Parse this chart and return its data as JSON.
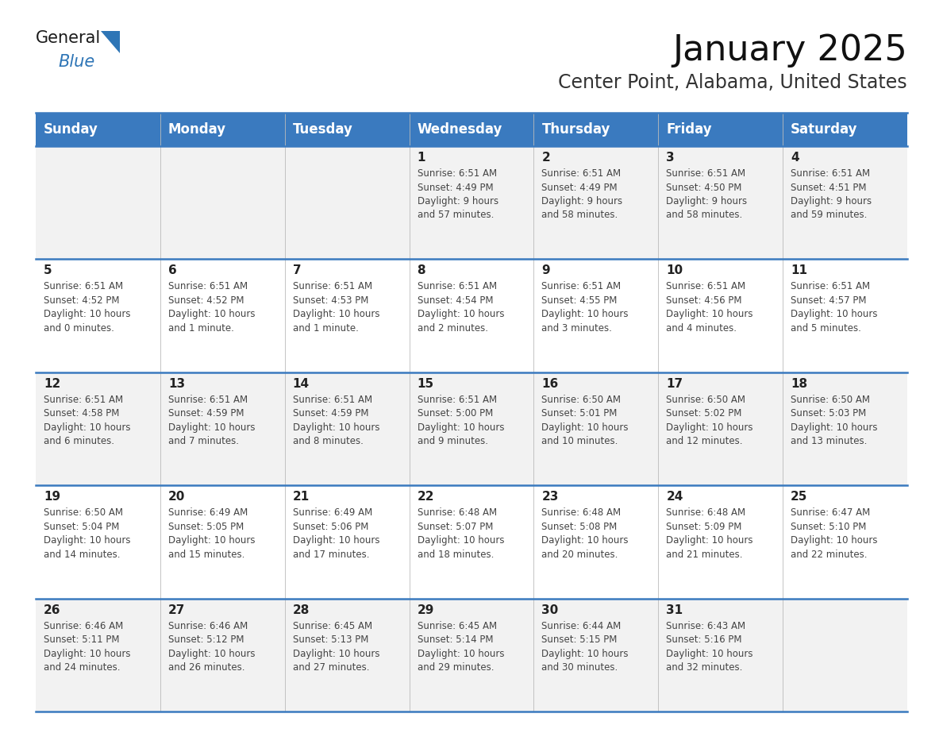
{
  "title": "January 2025",
  "subtitle": "Center Point, Alabama, United States",
  "days_of_week": [
    "Sunday",
    "Monday",
    "Tuesday",
    "Wednesday",
    "Thursday",
    "Friday",
    "Saturday"
  ],
  "header_bg": "#3a7abf",
  "header_text": "#FFFFFF",
  "row_bg_light": "#F2F2F2",
  "row_bg_white": "#FFFFFF",
  "border_color": "#3a7abf",
  "day_number_color": "#222222",
  "cell_text_color": "#444444",
  "weeks": [
    [
      {
        "day": "",
        "info": ""
      },
      {
        "day": "",
        "info": ""
      },
      {
        "day": "",
        "info": ""
      },
      {
        "day": "1",
        "info": "Sunrise: 6:51 AM\nSunset: 4:49 PM\nDaylight: 9 hours\nand 57 minutes."
      },
      {
        "day": "2",
        "info": "Sunrise: 6:51 AM\nSunset: 4:49 PM\nDaylight: 9 hours\nand 58 minutes."
      },
      {
        "day": "3",
        "info": "Sunrise: 6:51 AM\nSunset: 4:50 PM\nDaylight: 9 hours\nand 58 minutes."
      },
      {
        "day": "4",
        "info": "Sunrise: 6:51 AM\nSunset: 4:51 PM\nDaylight: 9 hours\nand 59 minutes."
      }
    ],
    [
      {
        "day": "5",
        "info": "Sunrise: 6:51 AM\nSunset: 4:52 PM\nDaylight: 10 hours\nand 0 minutes."
      },
      {
        "day": "6",
        "info": "Sunrise: 6:51 AM\nSunset: 4:52 PM\nDaylight: 10 hours\nand 1 minute."
      },
      {
        "day": "7",
        "info": "Sunrise: 6:51 AM\nSunset: 4:53 PM\nDaylight: 10 hours\nand 1 minute."
      },
      {
        "day": "8",
        "info": "Sunrise: 6:51 AM\nSunset: 4:54 PM\nDaylight: 10 hours\nand 2 minutes."
      },
      {
        "day": "9",
        "info": "Sunrise: 6:51 AM\nSunset: 4:55 PM\nDaylight: 10 hours\nand 3 minutes."
      },
      {
        "day": "10",
        "info": "Sunrise: 6:51 AM\nSunset: 4:56 PM\nDaylight: 10 hours\nand 4 minutes."
      },
      {
        "day": "11",
        "info": "Sunrise: 6:51 AM\nSunset: 4:57 PM\nDaylight: 10 hours\nand 5 minutes."
      }
    ],
    [
      {
        "day": "12",
        "info": "Sunrise: 6:51 AM\nSunset: 4:58 PM\nDaylight: 10 hours\nand 6 minutes."
      },
      {
        "day": "13",
        "info": "Sunrise: 6:51 AM\nSunset: 4:59 PM\nDaylight: 10 hours\nand 7 minutes."
      },
      {
        "day": "14",
        "info": "Sunrise: 6:51 AM\nSunset: 4:59 PM\nDaylight: 10 hours\nand 8 minutes."
      },
      {
        "day": "15",
        "info": "Sunrise: 6:51 AM\nSunset: 5:00 PM\nDaylight: 10 hours\nand 9 minutes."
      },
      {
        "day": "16",
        "info": "Sunrise: 6:50 AM\nSunset: 5:01 PM\nDaylight: 10 hours\nand 10 minutes."
      },
      {
        "day": "17",
        "info": "Sunrise: 6:50 AM\nSunset: 5:02 PM\nDaylight: 10 hours\nand 12 minutes."
      },
      {
        "day": "18",
        "info": "Sunrise: 6:50 AM\nSunset: 5:03 PM\nDaylight: 10 hours\nand 13 minutes."
      }
    ],
    [
      {
        "day": "19",
        "info": "Sunrise: 6:50 AM\nSunset: 5:04 PM\nDaylight: 10 hours\nand 14 minutes."
      },
      {
        "day": "20",
        "info": "Sunrise: 6:49 AM\nSunset: 5:05 PM\nDaylight: 10 hours\nand 15 minutes."
      },
      {
        "day": "21",
        "info": "Sunrise: 6:49 AM\nSunset: 5:06 PM\nDaylight: 10 hours\nand 17 minutes."
      },
      {
        "day": "22",
        "info": "Sunrise: 6:48 AM\nSunset: 5:07 PM\nDaylight: 10 hours\nand 18 minutes."
      },
      {
        "day": "23",
        "info": "Sunrise: 6:48 AM\nSunset: 5:08 PM\nDaylight: 10 hours\nand 20 minutes."
      },
      {
        "day": "24",
        "info": "Sunrise: 6:48 AM\nSunset: 5:09 PM\nDaylight: 10 hours\nand 21 minutes."
      },
      {
        "day": "25",
        "info": "Sunrise: 6:47 AM\nSunset: 5:10 PM\nDaylight: 10 hours\nand 22 minutes."
      }
    ],
    [
      {
        "day": "26",
        "info": "Sunrise: 6:46 AM\nSunset: 5:11 PM\nDaylight: 10 hours\nand 24 minutes."
      },
      {
        "day": "27",
        "info": "Sunrise: 6:46 AM\nSunset: 5:12 PM\nDaylight: 10 hours\nand 26 minutes."
      },
      {
        "day": "28",
        "info": "Sunrise: 6:45 AM\nSunset: 5:13 PM\nDaylight: 10 hours\nand 27 minutes."
      },
      {
        "day": "29",
        "info": "Sunrise: 6:45 AM\nSunset: 5:14 PM\nDaylight: 10 hours\nand 29 minutes."
      },
      {
        "day": "30",
        "info": "Sunrise: 6:44 AM\nSunset: 5:15 PM\nDaylight: 10 hours\nand 30 minutes."
      },
      {
        "day": "31",
        "info": "Sunrise: 6:43 AM\nSunset: 5:16 PM\nDaylight: 10 hours\nand 32 minutes."
      },
      {
        "day": "",
        "info": ""
      }
    ]
  ],
  "logo_text_general": "General",
  "logo_text_blue": "Blue",
  "logo_color_general": "#1a1a1a",
  "logo_color_blue": "#2E75B6",
  "logo_triangle_color": "#2E75B6",
  "title_fontsize": 32,
  "subtitle_fontsize": 17,
  "header_fontsize": 12,
  "day_num_fontsize": 11,
  "cell_fontsize": 8.5
}
